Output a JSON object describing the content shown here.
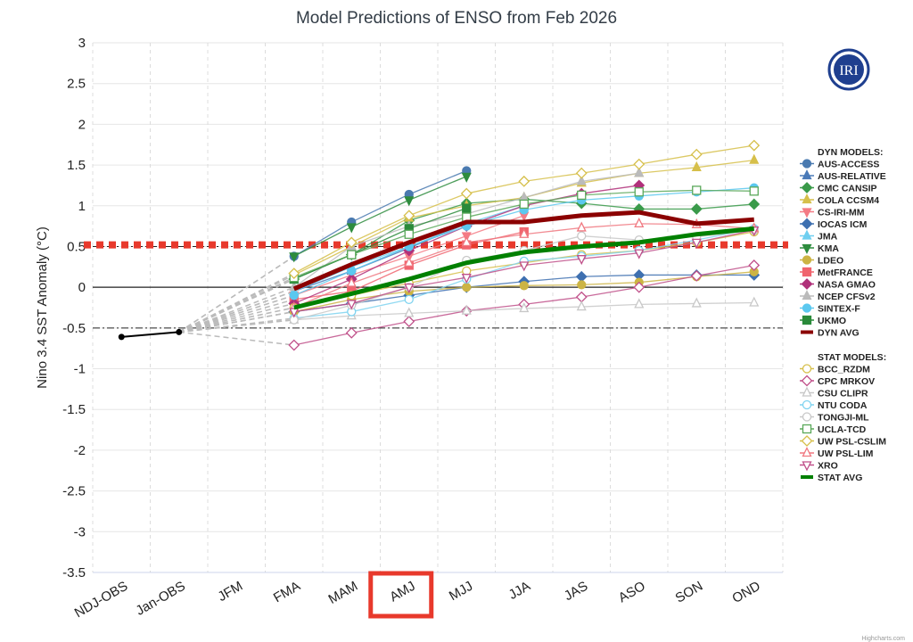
{
  "chart_data": {
    "type": "line",
    "title": "Model Predictions of ENSO from Feb 2026",
    "ylabel": "Nino 3.4 SST Anomaly (°C)",
    "xlabel": "",
    "ylim": [
      -3.5,
      3
    ],
    "yticks": [
      "3",
      "2.5",
      "2",
      "1.5",
      "1",
      "0.5",
      "0",
      "-0.5",
      "-1",
      "-1.5",
      "-2",
      "-2.5",
      "-3",
      "-3.5"
    ],
    "categories": [
      "NDJ-OBS",
      "Jan-OBS",
      "JFM",
      "FMA",
      "MAM",
      "AMJ",
      "MJJ",
      "JJA",
      "JAS",
      "ASO",
      "SON",
      "OND"
    ],
    "highlighted_category": "AMJ",
    "grid": true,
    "legend_position": "right",
    "reference_lines": {
      "el_nino_threshold": 0.5,
      "la_nina_threshold": -0.5,
      "red_dotted": 0.52
    },
    "observed": {
      "values": [
        -0.61,
        -0.55
      ],
      "color": "#000000"
    },
    "legend_headers": {
      "dyn": "DYN MODELS:",
      "stat": "STAT MODELS:"
    },
    "dyn_series": [
      {
        "name": "AUS-ACCESS",
        "color": "#4a7ab0",
        "marker": "circle",
        "filled": true,
        "values": [
          0.38,
          0.8,
          1.14,
          1.43
        ]
      },
      {
        "name": "AUS-RELATIVE",
        "color": "#4a7ab8",
        "marker": "triangle",
        "filled": true,
        "values": [
          -0.05,
          0.2,
          0.48,
          0.78
        ]
      },
      {
        "name": "CMC CANSIP",
        "color": "#3a9a4a",
        "marker": "diamond",
        "filled": true,
        "values": [
          0.1,
          0.4,
          0.82,
          1.03,
          1.08,
          1.03,
          0.96,
          0.96,
          1.02
        ]
      },
      {
        "name": "COLA CCSM4",
        "color": "#d6bf4a",
        "marker": "triangle",
        "filled": true,
        "values": [
          0.15,
          0.5,
          0.85,
          1.0,
          1.1,
          1.28,
          1.4,
          1.47,
          1.56
        ]
      },
      {
        "name": "CS-IRI-MM",
        "color": "#f47b85",
        "marker": "triangle-down",
        "filled": true,
        "values": [
          -0.1,
          0.15,
          0.38,
          0.63,
          0.88
        ]
      },
      {
        "name": "IOCAS ICM",
        "color": "#3e70b0",
        "marker": "diamond",
        "filled": true,
        "values": [
          -0.3,
          -0.2,
          -0.1,
          0.0,
          0.07,
          0.13,
          0.15,
          0.15,
          0.15
        ]
      },
      {
        "name": "JMA",
        "color": "#6ecff0",
        "marker": "triangle",
        "filled": true,
        "values": [
          -0.05,
          0.25,
          0.5,
          0.78,
          1.0
        ]
      },
      {
        "name": "KMA",
        "color": "#2e8c3e",
        "marker": "triangle-down",
        "filled": true,
        "values": [
          0.38,
          0.74,
          1.07,
          1.36
        ]
      },
      {
        "name": "LDEO",
        "color": "#ccb444",
        "marker": "circle",
        "filled": true,
        "values": [
          -0.3,
          -0.15,
          -0.05,
          0.0,
          0.02,
          0.03,
          0.06,
          0.13,
          0.19
        ]
      },
      {
        "name": "MetFRANCE",
        "color": "#f0646e",
        "marker": "square",
        "filled": true,
        "values": [
          -0.15,
          -0.05,
          0.27,
          0.52,
          0.68
        ]
      },
      {
        "name": "NASA GMAO",
        "color": "#b0307a",
        "marker": "diamond",
        "filled": true,
        "values": [
          -0.2,
          0.1,
          0.45,
          0.75,
          1.0,
          1.15,
          1.25
        ]
      },
      {
        "name": "NCEP CFSv2",
        "color": "#bbbbbb",
        "marker": "triangle",
        "filled": true,
        "values": [
          0.0,
          0.5,
          0.75,
          0.9,
          1.1,
          1.3,
          1.4
        ]
      },
      {
        "name": "SINTEX-F",
        "color": "#5bc8ef",
        "marker": "circle",
        "filled": true,
        "values": [
          -0.1,
          0.2,
          0.5,
          0.75,
          0.95,
          1.07,
          1.12,
          1.17,
          1.22
        ]
      },
      {
        "name": "UKMO",
        "color": "#2a8a3a",
        "marker": "square",
        "filled": true,
        "values": [
          0.1,
          0.4,
          0.72,
          0.97
        ]
      },
      {
        "name": "DYN AVG",
        "color": "#8b0000",
        "marker": "none",
        "avg": true,
        "values": [
          -0.02,
          0.28,
          0.55,
          0.8,
          0.8,
          0.88,
          0.92,
          0.78,
          0.83
        ]
      }
    ],
    "stat_series": [
      {
        "name": "BCC_RZDM",
        "color": "#d6bf4a",
        "marker": "circle",
        "filled": false,
        "values": [
          -0.25,
          -0.1,
          0.05,
          0.2,
          0.3,
          0.4,
          0.45,
          0.55,
          0.68
        ]
      },
      {
        "name": "CPC MRKOV",
        "color": "#c0508a",
        "marker": "diamond",
        "filled": false,
        "values": [
          -0.71,
          -0.56,
          -0.42,
          -0.29,
          -0.21,
          -0.12,
          0.0,
          0.14,
          0.27
        ]
      },
      {
        "name": "CSU CLIPR",
        "color": "#c8c8c8",
        "marker": "triangle",
        "filled": false,
        "values": [
          -0.4,
          -0.35,
          -0.32,
          -0.29,
          -0.26,
          -0.24,
          -0.21,
          -0.2,
          -0.19
        ]
      },
      {
        "name": "NTU CODA",
        "color": "#7fd3f0",
        "marker": "circle",
        "filled": false,
        "values": [
          -0.38,
          -0.3,
          -0.15,
          0.1,
          0.32,
          0.38,
          0.45,
          0.58,
          0.72
        ]
      },
      {
        "name": "TONGJI-ML",
        "color": "#c8c8c8",
        "marker": "circle",
        "filled": false,
        "values": [
          -0.4,
          -0.22,
          0.0,
          0.33,
          0.45,
          0.63,
          0.58,
          0.62,
          0.7
        ]
      },
      {
        "name": "UCLA-TCD",
        "color": "#5aa85a",
        "marker": "square",
        "filled": false,
        "values": [
          0.12,
          0.4,
          0.65,
          0.86,
          1.02,
          1.13,
          1.17,
          1.19,
          1.18
        ]
      },
      {
        "name": "UW PSL-CSLIM",
        "color": "#d6bf4a",
        "marker": "diamond",
        "filled": false,
        "values": [
          0.17,
          0.55,
          0.88,
          1.15,
          1.3,
          1.4,
          1.51,
          1.63,
          1.74
        ]
      },
      {
        "name": "UW PSL-LIM",
        "color": "#f07880",
        "marker": "triangle",
        "filled": false,
        "values": [
          -0.25,
          0.05,
          0.3,
          0.55,
          0.65,
          0.73,
          0.78,
          0.77,
          0.72
        ]
      },
      {
        "name": "XRO",
        "color": "#c0508a",
        "marker": "triangle-down",
        "filled": false,
        "values": [
          -0.3,
          -0.2,
          0.0,
          0.12,
          0.27,
          0.35,
          0.42,
          0.55,
          0.7
        ]
      },
      {
        "name": "STAT AVG",
        "color": "#008000",
        "marker": "none",
        "avg": true,
        "values": [
          -0.25,
          -0.08,
          0.1,
          0.3,
          0.43,
          0.5,
          0.55,
          0.65,
          0.72
        ]
      }
    ]
  },
  "logo": {
    "text": "IRI",
    "color": "#1f3f8f"
  },
  "credit": "Highcharts.com",
  "colors": {
    "highlight_box": "#e8392c",
    "red_dotted": "#e8392c"
  }
}
